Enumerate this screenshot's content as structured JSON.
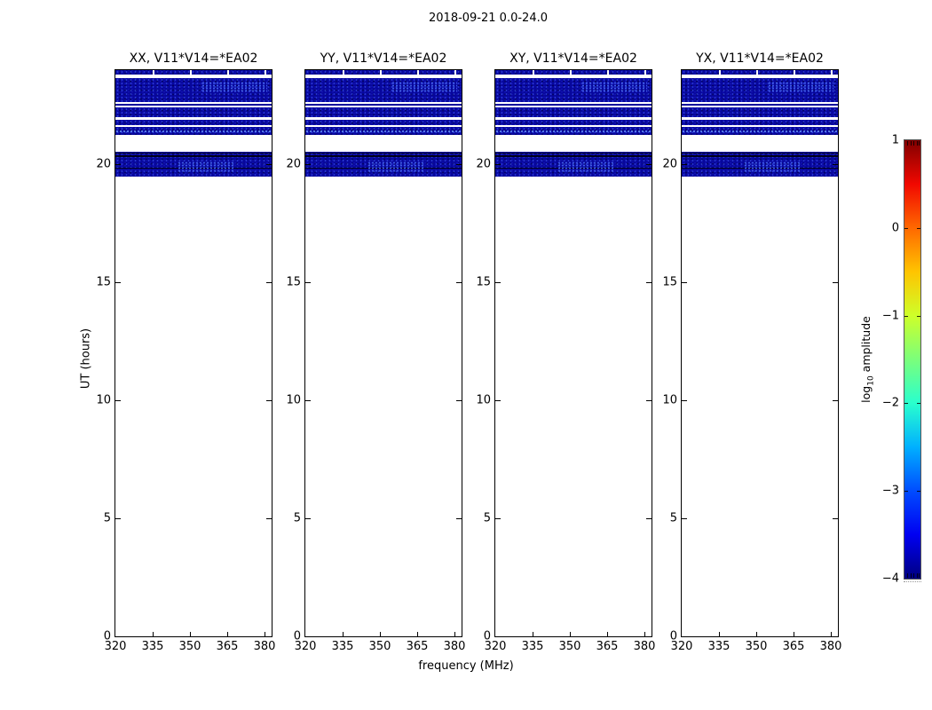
{
  "figure": {
    "suptitle": "2018-09-21 0.0-24.0",
    "xlabel": "frequency (MHz)",
    "ylabel": "UT (hours)"
  },
  "colorbar": {
    "label_prefix": "log",
    "label_sub": "10",
    "label_suffix": " amplitude",
    "tick_labels": [
      "1",
      "0",
      "−1",
      "−2",
      "−3",
      "−4"
    ],
    "tick_values": [
      1,
      0,
      -1,
      -2,
      -3,
      -4
    ],
    "vmin": -4,
    "vmax": 1,
    "colormap": "jet",
    "gradient_colors": [
      "#000080",
      "#0000f1",
      "#004cff",
      "#00b0ff",
      "#29ffce",
      "#7bff7b",
      "#ceff29",
      "#ffc400",
      "#ff6800",
      "#f10800",
      "#800000"
    ]
  },
  "chart_data": {
    "type": "heatmap",
    "suptitle": "2018-09-21 0.0-24.0",
    "date": "2018-09-21",
    "time_range_hours": [
      0.0,
      24.0
    ],
    "baseline": "V11*V14=*EA02",
    "panels": [
      {
        "polarization": "XX",
        "title": "XX, V11*V14=*EA02"
      },
      {
        "polarization": "YY",
        "title": "YY, V11*V14=*EA02"
      },
      {
        "polarization": "XY",
        "title": "XY, V11*V14=*EA02"
      },
      {
        "polarization": "YX",
        "title": "YX, V11*V14=*EA02"
      }
    ],
    "xlabel": "frequency (MHz)",
    "ylabel": "UT (hours)",
    "xlim": [
      320,
      383
    ],
    "ylim": [
      0,
      24
    ],
    "xticks": [
      320,
      335,
      350,
      365,
      380
    ],
    "yticks": [
      20,
      15,
      10,
      5,
      0
    ],
    "grid": false,
    "colorbar": {
      "label": "log10 amplitude",
      "ticks": [
        1,
        0,
        -1,
        -2,
        -3,
        -4
      ],
      "range": [
        -4,
        1
      ],
      "colormap": "jet"
    },
    "no_data_color": "white",
    "data_fill_color": "dark blue (log10 amplitude ~ -4)",
    "data_coverage_ut": [
      {
        "ut": [
          23.82,
          24.0
        ],
        "amplitude_log10": -4,
        "texture": "speckle",
        "note": "thin band at top edge, white tick gaps"
      },
      {
        "ut": [
          22.63,
          23.65
        ],
        "amplitude_log10": -4,
        "texture": "speckle",
        "bright_patch": "upper-right"
      },
      {
        "ut": [
          22.49,
          22.57
        ],
        "amplitude_log10": -4,
        "texture": "flat"
      },
      {
        "ut": [
          21.99,
          22.42
        ],
        "amplitude_log10": -4,
        "texture": "speckle"
      },
      {
        "ut": [
          21.67,
          21.89
        ],
        "amplitude_log10": -4,
        "texture": "speckle"
      },
      {
        "ut": [
          21.24,
          21.6
        ],
        "amplitude_log10": -4,
        "texture": "bright-row",
        "dark_rows_ut": [
          21.26
        ]
      },
      {
        "ut": [
          19.47,
          20.54
        ],
        "amplitude_log10": -4,
        "texture": "speckle",
        "dark_rows_ut": [
          20.52,
          20.37,
          19.88
        ],
        "bright_patch": "center"
      }
    ]
  }
}
